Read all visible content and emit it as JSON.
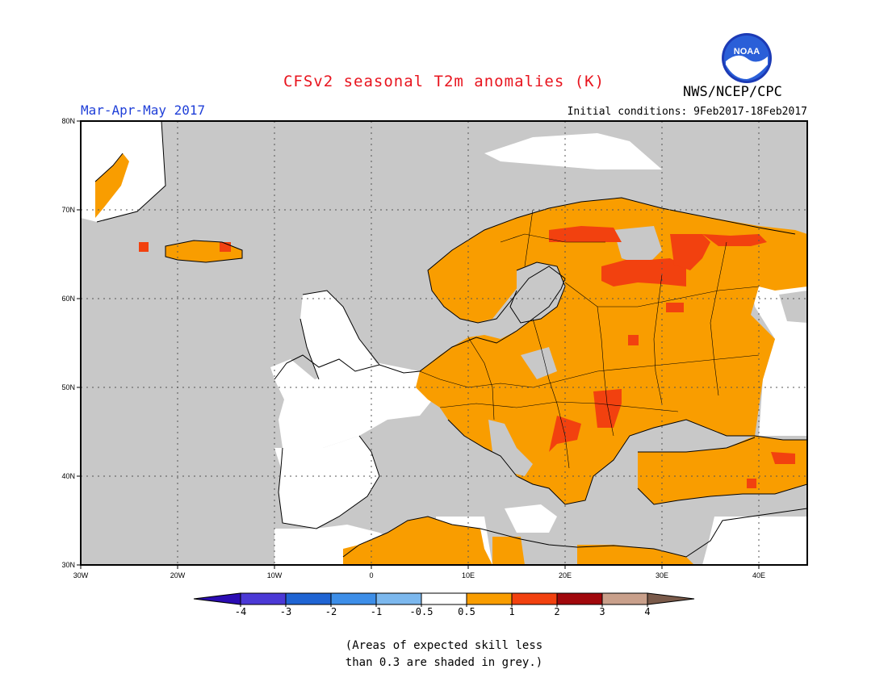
{
  "title": "CFSv2 seasonal T2m anomalies (K)",
  "agency": "NWS/NCEP/CPC",
  "logo_text": "NOAA",
  "period": "Mar-Apr-May 2017",
  "initial_conditions": "Initial conditions: 9Feb2017-18Feb2017",
  "lat_ticks": [
    "80N",
    "70N",
    "60N",
    "50N",
    "40N",
    "30N"
  ],
  "lon_ticks": [
    "30W",
    "20W",
    "10W",
    "0",
    "10E",
    "20E",
    "30E",
    "40E"
  ],
  "legend": {
    "colors": [
      "#2b0cb3",
      "#4b39d6",
      "#1f64d3",
      "#3d8ee8",
      "#7cb8ee",
      "#ffffff",
      "#f99d00",
      "#f2410f",
      "#a1080c",
      "#c9a08b",
      "#7a5a4a"
    ],
    "labels": [
      "-4",
      "-3",
      "-2",
      "-1",
      "-0.5",
      "0.5",
      "1",
      "2",
      "3",
      "4"
    ]
  },
  "shading_colors": {
    "grey": "#c8c8c8",
    "neutral": "#ffffff",
    "warm": "#f99d00",
    "hot": "#f2410f"
  },
  "note_line1": "(Areas of expected skill less",
  "note_line2": "than 0.3 are shaded in grey.)"
}
